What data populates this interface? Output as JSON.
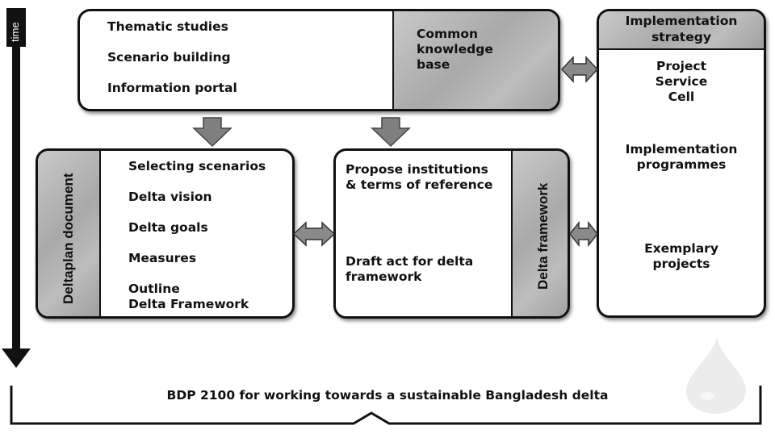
{
  "time_label": "time",
  "top_box": {
    "items": [
      "Thematic studies",
      "Scenario building",
      "Information portal"
    ],
    "side_lines": [
      "Common",
      "knowledge",
      "base"
    ]
  },
  "implementation": {
    "header_lines": [
      "Implementation",
      "strategy"
    ],
    "item1_lines": [
      "Project",
      "Service",
      "Cell"
    ],
    "item2_lines": [
      "Implementation",
      "programmes"
    ],
    "item3_lines": [
      "Exemplary",
      "projects"
    ]
  },
  "deltaplan": {
    "side_label": "Deltaplan document",
    "items": [
      "Selecting scenarios",
      "Delta vision",
      "Delta goals",
      "Measures"
    ],
    "outline_lines": [
      "Outline",
      "Delta Framework"
    ]
  },
  "framework": {
    "side_label": "Delta framework",
    "item1_lines": [
      "Propose institutions",
      "& terms of reference"
    ],
    "item2_lines": [
      "Draft act for delta",
      "framework"
    ]
  },
  "bottom_caption": "BDP 2100 for working towards a sustainable Bangladesh delta",
  "colors": {
    "arrow_fill": "#7f7f7f",
    "panel_gray": "#b0b0b0",
    "line": "#111111"
  }
}
